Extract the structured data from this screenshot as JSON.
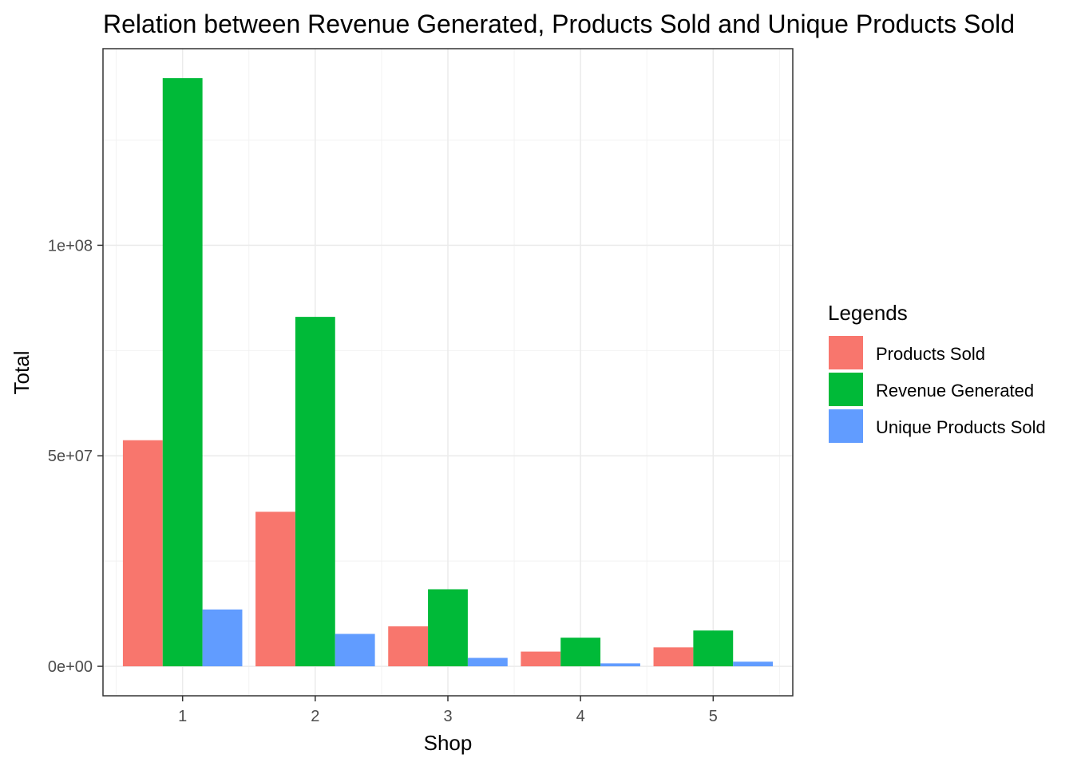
{
  "chart_data": {
    "type": "bar",
    "title": "Relation between Revenue Generated, Products Sold and Unique Products Sold",
    "xlabel": "Shop",
    "ylabel": "Total",
    "categories": [
      "1",
      "2",
      "3",
      "4",
      "5"
    ],
    "series": [
      {
        "name": "Products Sold",
        "color": "#F8766D",
        "values": [
          53700000,
          36700000,
          9500000,
          3500000,
          4500000
        ]
      },
      {
        "name": "Revenue Generated",
        "color": "#00BA38",
        "values": [
          139700000,
          83000000,
          18300000,
          6800000,
          8500000
        ]
      },
      {
        "name": "Unique Products Sold",
        "color": "#619CFF",
        "values": [
          13500000,
          7700000,
          2000000,
          700000,
          1100000
        ]
      }
    ],
    "ylim": [
      -7000000,
      146700000
    ],
    "yticks": [
      0,
      50000000,
      100000000
    ],
    "ytick_labels": [
      "0e+00",
      "5e+07",
      "1e+08"
    ],
    "grid": true,
    "legend": {
      "title": "Legends",
      "position": "right"
    }
  }
}
